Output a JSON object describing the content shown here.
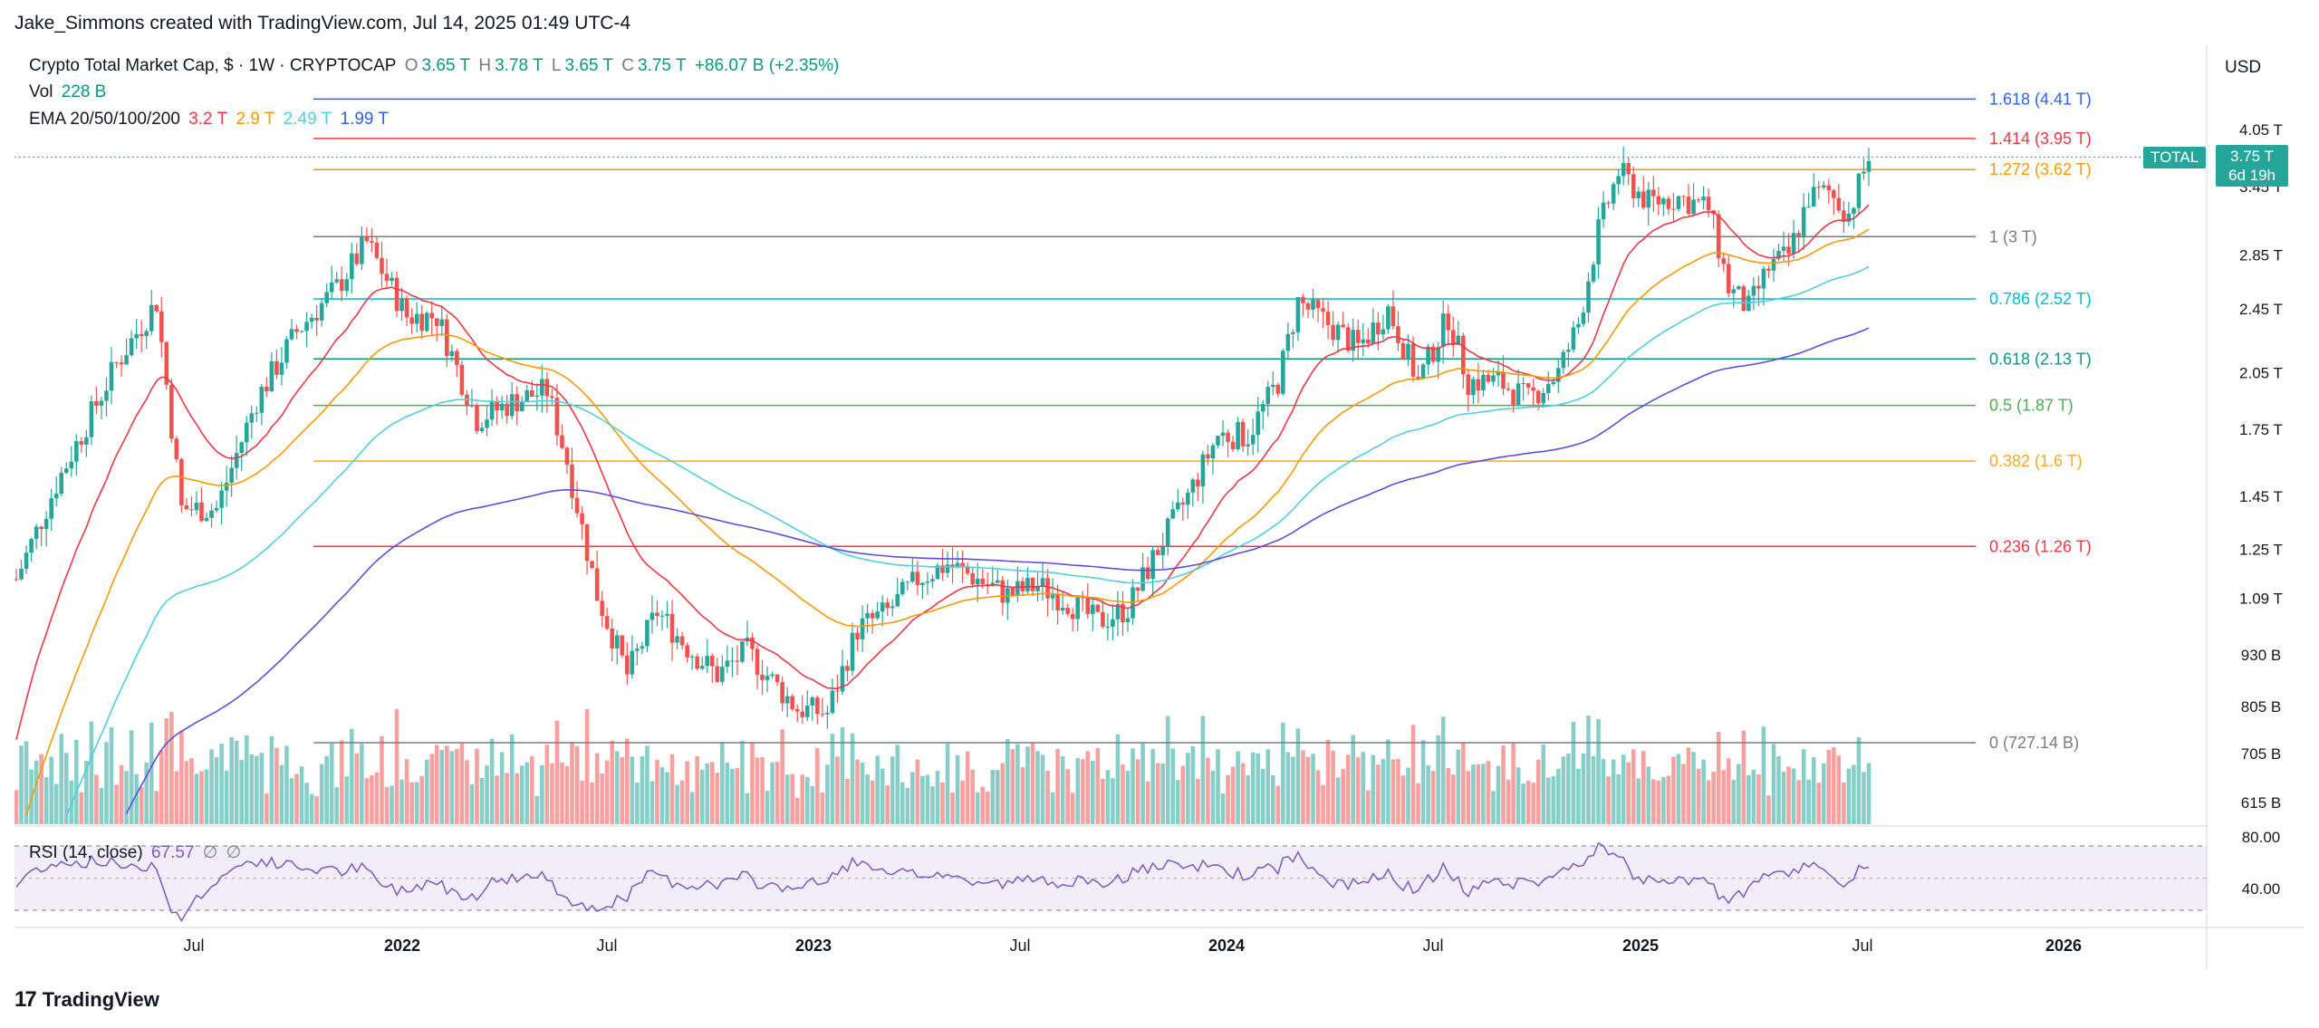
{
  "header": {
    "credit": "Jake_Simmons created with TradingView.com, Jul 14, 2025 01:49 UTC-4"
  },
  "legend": {
    "symbol": "Crypto Total Market Cap, $ · 1W · CRYPTOCAP",
    "open_label": "O",
    "open": "3.65 T",
    "high_label": "H",
    "high": "3.78 T",
    "low_label": "L",
    "low": "3.65 T",
    "close_label": "C",
    "close": "3.75 T",
    "change": "+86.07 B (+2.35%)",
    "vol_label": "Vol",
    "vol": "228 B",
    "ema_label": "EMA 20/50/100/200",
    "ema20": "3.2 T",
    "ema50": "2.9 T",
    "ema100": "2.49 T",
    "ema200": "1.99 T",
    "rsi_label": "RSI (14, close)",
    "rsi_value": "67.57",
    "rsi_na1": "∅",
    "rsi_na2": "∅"
  },
  "axis": {
    "currency": "USD",
    "total_tag": "TOTAL",
    "last_price": "3.75 T",
    "countdown": "6d 19h"
  },
  "footer": {
    "brand": "TradingView"
  },
  "colors": {
    "up": "#26a69a",
    "down": "#ef5350",
    "ema20": "#f23645",
    "ema50": "#ff9800",
    "ema100": "#4dd0e1",
    "ema200": "#5b4fe0"
  },
  "chart_data": {
    "type": "candlestick",
    "title": "Crypto Total Market Cap, $ · 1W · CRYPTOCAP",
    "y_scale": "log",
    "x_ticks": [
      "Jul",
      "2022",
      "Jul",
      "2023",
      "Jul",
      "2024",
      "Jul",
      "2025",
      "Jul",
      "2026"
    ],
    "y_ticks": [
      "4.05 T",
      "3.45 T",
      "2.85 T",
      "2.45 T",
      "2.05 T",
      "1.75 T",
      "1.45 T",
      "1.25 T",
      "1.09 T",
      "930 B",
      "805 B",
      "705 B",
      "615 B"
    ],
    "fib_levels": [
      {
        "label": "1.618 (4.41 T)",
        "value": 4.41,
        "color": "#2962ff"
      },
      {
        "label": "1.414 (3.95 T)",
        "value": 3.95,
        "color": "#f23645"
      },
      {
        "label": "1.272 (3.62 T)",
        "value": 3.62,
        "color": "#ff9800"
      },
      {
        "label": "1 (3 T)",
        "value": 3.0,
        "color": "#787b86"
      },
      {
        "label": "0.786 (2.52 T)",
        "value": 2.52,
        "color": "#00bcd4"
      },
      {
        "label": "0.618 (2.13 T)",
        "value": 2.13,
        "color": "#089981"
      },
      {
        "label": "0.5 (1.87 T)",
        "value": 1.87,
        "color": "#4caf50"
      },
      {
        "label": "0.382 (1.6 T)",
        "value": 1.6,
        "color": "#f9a825"
      },
      {
        "label": "0.236 (1.26 T)",
        "value": 1.26,
        "color": "#f23645"
      },
      {
        "label": "0 (727.14 B)",
        "value": 0.727,
        "color": "#787b86"
      }
    ],
    "rsi_ticks": [
      "80.00",
      "40.00"
    ],
    "price_path": [
      [
        0,
        1.15
      ],
      [
        8,
        1.5
      ],
      [
        20,
        2.1
      ],
      [
        28,
        2.5
      ],
      [
        33,
        1.4
      ],
      [
        40,
        1.4
      ],
      [
        48,
        1.9
      ],
      [
        56,
        2.3
      ],
      [
        64,
        2.6
      ],
      [
        70,
        2.95
      ],
      [
        78,
        2.4
      ],
      [
        84,
        2.4
      ],
      [
        92,
        1.8
      ],
      [
        100,
        1.9
      ],
      [
        106,
        1.95
      ],
      [
        110,
        1.6
      ],
      [
        116,
        1.1
      ],
      [
        122,
        0.88
      ],
      [
        128,
        1.05
      ],
      [
        134,
        0.95
      ],
      [
        140,
        0.88
      ],
      [
        146,
        0.94
      ],
      [
        152,
        0.85
      ],
      [
        156,
        0.8
      ],
      [
        162,
        0.79
      ],
      [
        168,
        1.0
      ],
      [
        174,
        1.05
      ],
      [
        180,
        1.15
      ],
      [
        186,
        1.2
      ],
      [
        192,
        1.15
      ],
      [
        198,
        1.1
      ],
      [
        204,
        1.13
      ],
      [
        210,
        1.08
      ],
      [
        216,
        1.02
      ],
      [
        222,
        1.06
      ],
      [
        228,
        1.25
      ],
      [
        234,
        1.45
      ],
      [
        240,
        1.72
      ],
      [
        246,
        1.72
      ],
      [
        252,
        2.0
      ],
      [
        256,
        2.5
      ],
      [
        262,
        2.35
      ],
      [
        268,
        2.2
      ],
      [
        274,
        2.45
      ],
      [
        280,
        2.0
      ],
      [
        286,
        2.4
      ],
      [
        290,
        2.0
      ],
      [
        296,
        2.0
      ],
      [
        302,
        1.9
      ],
      [
        308,
        2.05
      ],
      [
        312,
        2.35
      ],
      [
        316,
        3.05
      ],
      [
        320,
        3.6
      ],
      [
        326,
        3.3
      ],
      [
        332,
        3.35
      ],
      [
        338,
        3.25
      ],
      [
        342,
        2.6
      ],
      [
        346,
        2.45
      ],
      [
        350,
        2.75
      ],
      [
        354,
        2.85
      ],
      [
        358,
        3.35
      ],
      [
        362,
        3.4
      ],
      [
        366,
        3.2
      ],
      [
        370,
        3.75
      ]
    ]
  }
}
